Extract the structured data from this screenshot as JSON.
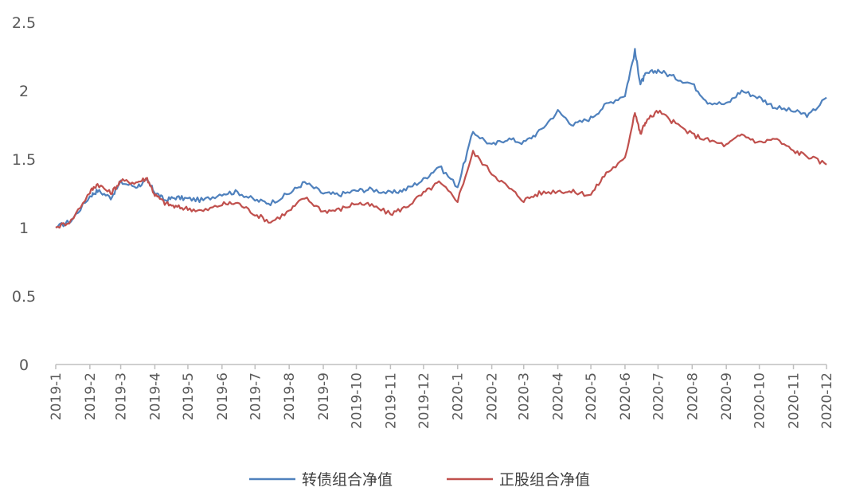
{
  "chart_data": {
    "type": "line",
    "title": "",
    "xlabel": "",
    "ylabel": "",
    "ylim": [
      0,
      2.5
    ],
    "yticks": [
      "0",
      "0.5",
      "1",
      "1.5",
      "2",
      "2.5"
    ],
    "x_tick_labels": [
      "2019-1",
      "2019-2",
      "2019-3",
      "2019-4",
      "2019-5",
      "2019-6",
      "2019-7",
      "2019-8",
      "2019-9",
      "2019-10",
      "2019-11",
      "2019-12",
      "2020-1",
      "2020-2",
      "2020-3",
      "2020-4",
      "2020-5",
      "2020-6",
      "2020-7",
      "2020-8",
      "2020-9",
      "2020-10",
      "2020-11",
      "2020-12"
    ],
    "grid": false,
    "legend_position": "bottom",
    "series": [
      {
        "name": "转债组合净值",
        "color": "#4f81bd",
        "x": [
          "2019-01",
          "2019-01-15",
          "2019-02",
          "2019-02-08",
          "2019-02-20",
          "2019-03",
          "2019-03-15",
          "2019-03-25",
          "2019-04",
          "2019-04-10",
          "2019-04-20",
          "2019-05",
          "2019-05-15",
          "2019-06",
          "2019-06-15",
          "2019-07",
          "2019-07-15",
          "2019-08",
          "2019-08-15",
          "2019-09",
          "2019-09-15",
          "2019-10",
          "2019-10-15",
          "2019-11",
          "2019-11-15",
          "2019-12",
          "2019-12-15",
          "2020-01",
          "2020-01-15",
          "2020-02",
          "2020-02-15",
          "2020-03",
          "2020-03-15",
          "2020-04",
          "2020-04-15",
          "2020-05",
          "2020-05-15",
          "2020-06",
          "2020-06-10",
          "2020-06-15",
          "2020-06-20",
          "2020-07",
          "2020-07-15",
          "2020-08",
          "2020-08-15",
          "2020-09",
          "2020-09-15",
          "2020-10",
          "2020-10-15",
          "2020-11",
          "2020-11-15",
          "2020-12"
        ],
        "values": [
          1.0,
          1.05,
          1.23,
          1.27,
          1.22,
          1.33,
          1.3,
          1.34,
          1.26,
          1.2,
          1.22,
          1.21,
          1.2,
          1.25,
          1.26,
          1.2,
          1.18,
          1.25,
          1.33,
          1.25,
          1.24,
          1.27,
          1.28,
          1.25,
          1.28,
          1.35,
          1.45,
          1.3,
          1.7,
          1.6,
          1.65,
          1.62,
          1.7,
          1.85,
          1.75,
          1.8,
          1.9,
          1.97,
          2.29,
          2.05,
          2.12,
          2.15,
          2.1,
          2.05,
          1.92,
          1.9,
          2.0,
          1.95,
          1.88,
          1.85,
          1.82,
          1.95
        ]
      },
      {
        "name": "正股组合净值",
        "color": "#c0504d",
        "x": [
          "2019-01",
          "2019-01-15",
          "2019-02",
          "2019-02-08",
          "2019-02-20",
          "2019-03",
          "2019-03-15",
          "2019-03-25",
          "2019-04",
          "2019-04-10",
          "2019-04-20",
          "2019-05",
          "2019-05-15",
          "2019-06",
          "2019-06-15",
          "2019-07",
          "2019-07-15",
          "2019-08",
          "2019-08-15",
          "2019-09",
          "2019-09-15",
          "2019-10",
          "2019-10-15",
          "2019-11",
          "2019-11-15",
          "2019-12",
          "2019-12-15",
          "2020-01",
          "2020-01-15",
          "2020-02",
          "2020-02-15",
          "2020-03",
          "2020-03-15",
          "2020-04",
          "2020-04-15",
          "2020-05",
          "2020-05-15",
          "2020-06",
          "2020-06-10",
          "2020-06-15",
          "2020-06-20",
          "2020-07",
          "2020-07-15",
          "2020-08",
          "2020-08-15",
          "2020-09",
          "2020-09-15",
          "2020-10",
          "2020-10-15",
          "2020-11",
          "2020-11-15",
          "2020-12"
        ],
        "values": [
          1.0,
          1.05,
          1.26,
          1.32,
          1.25,
          1.34,
          1.33,
          1.36,
          1.24,
          1.18,
          1.15,
          1.14,
          1.12,
          1.17,
          1.18,
          1.1,
          1.04,
          1.12,
          1.22,
          1.12,
          1.13,
          1.18,
          1.16,
          1.1,
          1.15,
          1.25,
          1.33,
          1.2,
          1.55,
          1.4,
          1.3,
          1.2,
          1.25,
          1.27,
          1.26,
          1.24,
          1.4,
          1.5,
          1.85,
          1.68,
          1.78,
          1.85,
          1.77,
          1.68,
          1.64,
          1.6,
          1.68,
          1.62,
          1.65,
          1.56,
          1.52,
          1.46
        ]
      }
    ]
  }
}
